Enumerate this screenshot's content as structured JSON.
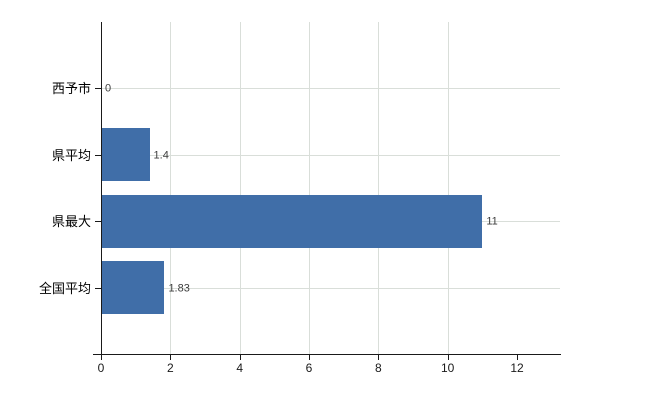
{
  "chart_data": {
    "type": "bar",
    "orientation": "horizontal",
    "title": "",
    "xlabel": "",
    "ylabel": "",
    "categories": [
      "西予市",
      "県平均",
      "県最大",
      "全国平均"
    ],
    "values": [
      0,
      1.4,
      11,
      1.83
    ],
    "value_labels": [
      "0",
      "1.4",
      "11",
      "1.83"
    ],
    "x_ticks": [
      0,
      2,
      4,
      6,
      8,
      10,
      12
    ],
    "x_tick_labels": [
      "0",
      "2",
      "4",
      "6",
      "8",
      "10",
      "12"
    ],
    "xlim": [
      0,
      13.24
    ],
    "grid": true,
    "legend": false,
    "colors": {
      "bar": "#406ea8",
      "gridline": "#d9ded9",
      "dashed_gridline": "#d6d2dd",
      "axis": "#1a1a1a",
      "category_label": "#000000",
      "value_label": "#3c3c3c",
      "background": "#ffffff"
    }
  }
}
